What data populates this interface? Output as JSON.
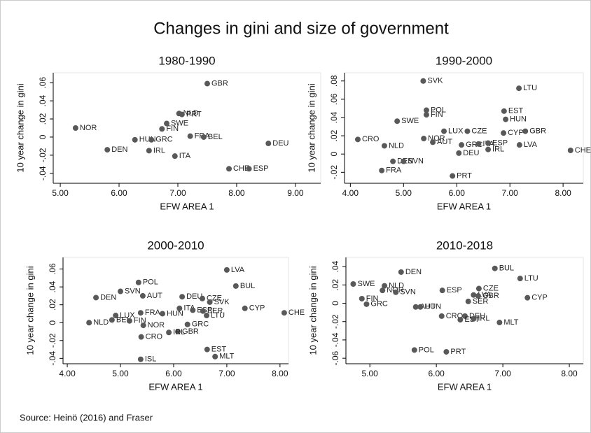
{
  "title": "Changes in gini and size of government",
  "source": "Source: Heinö (2016) and Fraser",
  "chart_data": [
    {
      "type": "scatter",
      "title": "1980-1990",
      "xlabel": "EFW AREA 1",
      "ylabel": "10 year change in gini",
      "color": "#595959",
      "point_labels": [
        "NOR",
        "DEN",
        "HUN",
        "GRC",
        "IRL",
        "FIN",
        "SWE",
        "NLD",
        "PRT",
        "ITA",
        "FRA",
        "BEL",
        "GBR",
        "CHE",
        "ESP",
        "DEU"
      ],
      "x": [
        5.26,
        5.8,
        6.27,
        6.55,
        6.51,
        6.73,
        6.81,
        7.02,
        7.07,
        6.95,
        7.21,
        7.44,
        7.5,
        7.87,
        8.21,
        8.54
      ],
      "values": [
        0.01,
        -0.014,
        -0.003,
        -0.003,
        -0.015,
        0.009,
        0.015,
        0.026,
        0.025,
        -0.021,
        0.001,
        0.0,
        0.059,
        -0.035,
        -0.035,
        -0.007
      ],
      "xlim": [
        4.88,
        9.43
      ],
      "ylim": [
        -0.051,
        0.071
      ],
      "xticks": [
        {
          "value": 5,
          "label": "5.00"
        },
        {
          "value": 6,
          "label": "6.00"
        },
        {
          "value": 7,
          "label": "7.00"
        },
        {
          "value": 8,
          "label": "8.00"
        },
        {
          "value": 9,
          "label": "9.00"
        }
      ],
      "yticks": [
        {
          "value": -0.04,
          "label": "-.04"
        },
        {
          "value": -0.02,
          "label": "-.02"
        },
        0,
        {
          "value": 0.02,
          "label": ".02"
        },
        {
          "value": 0.04,
          "label": ".04"
        },
        {
          "value": 0.06,
          "label": ".06"
        }
      ]
    },
    {
      "type": "scatter",
      "title": "1990-2000",
      "xlabel": "EFW AREA 1",
      "ylabel": "10 year change in gini",
      "color": "#595959",
      "point_labels": [
        "SVK",
        "LTU",
        "POL",
        "FIN",
        "EST",
        "HUN",
        "SWE",
        "LUX",
        "CZE",
        "CYP",
        "GBR",
        "CRO",
        "NOR",
        "AUT",
        "NLD",
        "GRC",
        "ITA",
        "ESP",
        "LVA",
        "IRL",
        "DEU",
        "CHE",
        "DEN",
        "SVN",
        "FRA",
        "PRT"
      ],
      "x": [
        5.37,
        7.17,
        5.43,
        5.43,
        6.89,
        6.92,
        4.88,
        5.76,
        6.2,
        6.88,
        7.29,
        4.14,
        5.38,
        5.55,
        4.64,
        6.09,
        6.41,
        6.59,
        7.18,
        6.59,
        6.04,
        8.14,
        4.8,
        5.0,
        4.59,
        5.92
      ],
      "values": [
        0.08,
        0.072,
        0.048,
        0.043,
        0.047,
        0.038,
        0.036,
        0.025,
        0.025,
        0.023,
        0.025,
        0.016,
        0.017,
        0.013,
        0.009,
        0.01,
        0.011,
        0.012,
        0.01,
        0.005,
        0.001,
        0.004,
        -0.008,
        -0.008,
        -0.018,
        -0.024
      ],
      "xlim": [
        3.89,
        8.38
      ],
      "ylim": [
        -0.032,
        0.089
      ],
      "xticks": [
        {
          "value": 4,
          "label": "4.00"
        },
        {
          "value": 5,
          "label": "5.00"
        },
        {
          "value": 6,
          "label": "6.00"
        },
        {
          "value": 7,
          "label": "7.00"
        },
        {
          "value": 8,
          "label": "8.00"
        }
      ],
      "yticks": [
        {
          "value": -0.02,
          "label": "-.02"
        },
        0,
        {
          "value": 0.02,
          "label": ".02"
        },
        {
          "value": 0.04,
          "label": ".04"
        },
        {
          "value": 0.06,
          "label": ".06"
        },
        {
          "value": 0.08,
          "label": ".08"
        }
      ]
    },
    {
      "type": "scatter",
      "title": "2000-2010",
      "xlabel": "EFW AREA 1",
      "ylabel": "10 year change in gini",
      "color": "#595959",
      "point_labels": [
        "LVA",
        "POL",
        "BUL",
        "SVN",
        "DEN",
        "AUT",
        "DEU",
        "CZE",
        "SVK",
        "CYP",
        "ITA",
        "ESP",
        "SER",
        "LTU",
        "CHE",
        "FRA",
        "HUN",
        "LUX",
        "BEL",
        "FIN",
        "NLD",
        "NOR",
        "GRC",
        "GBR",
        "IRL",
        "CRO",
        "EST",
        "MLT",
        "ISL"
      ],
      "x": [
        7.0,
        5.34,
        7.17,
        5.0,
        4.54,
        5.42,
        6.16,
        6.54,
        6.68,
        7.34,
        6.11,
        6.36,
        6.55,
        6.62,
        8.08,
        5.38,
        5.79,
        4.91,
        4.84,
        5.17,
        4.41,
        5.43,
        6.26,
        6.08,
        5.91,
        5.39,
        6.63,
        6.78,
        5.38
      ],
      "values": [
        0.059,
        0.045,
        0.041,
        0.035,
        0.028,
        0.03,
        0.029,
        0.027,
        0.023,
        0.016,
        0.016,
        0.014,
        0.013,
        0.008,
        0.011,
        0.011,
        0.01,
        0.008,
        0.003,
        0.002,
        0.0,
        -0.003,
        -0.002,
        -0.01,
        -0.011,
        -0.016,
        -0.03,
        -0.038,
        -0.041
      ],
      "xlim": [
        3.92,
        8.16
      ],
      "ylim": [
        -0.046,
        0.073
      ],
      "xticks": [
        {
          "value": 4,
          "label": "4.00"
        },
        {
          "value": 5,
          "label": "5.00"
        },
        {
          "value": 6,
          "label": "6.00"
        },
        {
          "value": 7,
          "label": "7.00"
        },
        {
          "value": 8,
          "label": "8.00"
        }
      ],
      "yticks": [
        {
          "value": -0.04,
          "label": "-.04"
        },
        {
          "value": -0.02,
          "label": "-.02"
        },
        0,
        {
          "value": 0.02,
          "label": ".02"
        },
        {
          "value": 0.04,
          "label": ".04"
        },
        {
          "value": 0.06,
          "label": ".06"
        }
      ]
    },
    {
      "type": "scatter",
      "title": "2010-2018",
      "xlabel": "EFW AREA 1",
      "ylabel": "10 year change in gini",
      "color": "#595959",
      "point_labels": [
        "BUL",
        "LTU",
        "DEN",
        "SWE",
        "NLD",
        "NOR",
        "SVN",
        "ESP",
        "CZE",
        "LVA",
        "GBR",
        "CYP",
        "FIN",
        "SER",
        "GRC",
        "AUT",
        "HUN",
        "CRO",
        "DEU",
        "EST",
        "IRL",
        "MLT",
        "POL",
        "PRT"
      ],
      "x": [
        6.88,
        7.26,
        5.47,
        4.75,
        5.22,
        5.19,
        5.39,
        6.09,
        6.64,
        6.56,
        6.63,
        7.37,
        4.88,
        6.48,
        4.95,
        5.69,
        5.76,
        6.08,
        6.43,
        6.36,
        6.56,
        6.95,
        5.67,
        6.15
      ],
      "values": [
        0.038,
        0.027,
        0.034,
        0.021,
        0.019,
        0.014,
        0.012,
        0.014,
        0.016,
        0.009,
        0.008,
        0.006,
        0.005,
        0.002,
        -0.001,
        -0.004,
        -0.004,
        -0.014,
        -0.014,
        -0.018,
        -0.017,
        -0.021,
        -0.051,
        -0.053
      ],
      "xlim": [
        4.64,
        8.21
      ],
      "ylim": [
        -0.066,
        0.05
      ],
      "xticks": [
        {
          "value": 5,
          "label": "5.00"
        },
        {
          "value": 6,
          "label": "6.00"
        },
        {
          "value": 7,
          "label": "7.00"
        },
        {
          "value": 8,
          "label": "8.00"
        }
      ],
      "yticks": [
        {
          "value": -0.06,
          "label": "-.06"
        },
        {
          "value": -0.04,
          "label": "-.04"
        },
        {
          "value": -0.02,
          "label": "-.02"
        },
        0,
        {
          "value": 0.02,
          "label": ".02"
        },
        {
          "value": 0.04,
          "label": ".04"
        }
      ]
    }
  ]
}
